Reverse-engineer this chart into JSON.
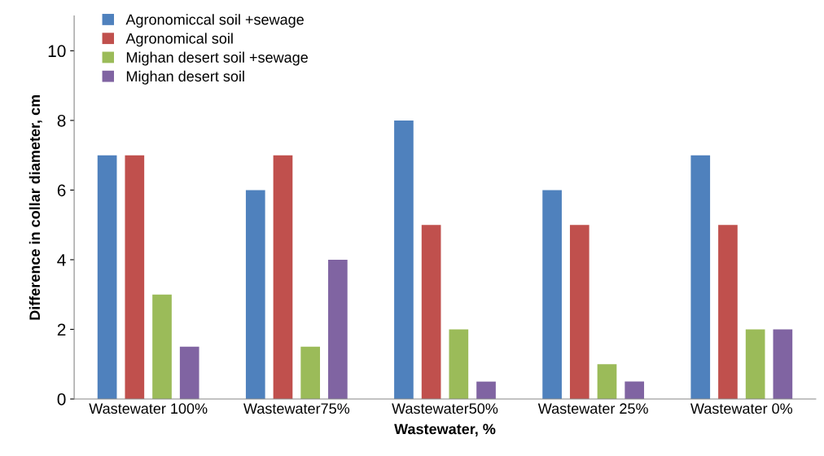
{
  "chart_data": {
    "type": "bar",
    "xlabel": "Wastewater, %",
    "ylabel": "Difference in collar diameter, cm",
    "categories": [
      "Wastewater 100%",
      "Wastewater75%",
      "Wastewater50%",
      "Wastewater 25%",
      "Wastewater 0%"
    ],
    "series": [
      {
        "name": "Agronomiccal soil +sewage",
        "color": "#4f81bd",
        "values": [
          7,
          6,
          8,
          6,
          7
        ]
      },
      {
        "name": "Agronomical soil",
        "color": "#c0504d",
        "values": [
          7,
          7,
          5,
          5,
          5
        ]
      },
      {
        "name": "Mighan desert soil +sewage",
        "color": "#9bbb59",
        "values": [
          3,
          1.5,
          2,
          1,
          2
        ]
      },
      {
        "name": "Mighan desert soil",
        "color": "#8064a2",
        "values": [
          1.5,
          4,
          0.5,
          0.5,
          2
        ]
      }
    ],
    "ylim": [
      0,
      11
    ],
    "yticks": [
      0,
      2,
      4,
      6,
      8,
      10
    ],
    "grid": false,
    "legend": "top left"
  }
}
